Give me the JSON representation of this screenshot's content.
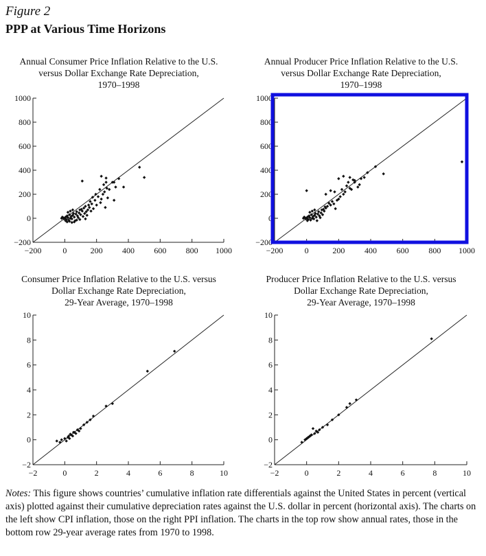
{
  "figure": {
    "label": "Figure 2",
    "title": "PPP at Various Time Horizons"
  },
  "panels": [
    {
      "title_lines": [
        "Annual Consumer Price Inflation Relative to the U.S.",
        "versus Dollar Exchange Rate Depreciation,",
        "1970–1998"
      ],
      "highlighted": false
    },
    {
      "title_lines": [
        "Annual Producer Price Inflation Relative to the U.S.",
        "versus Dollar Exchange Rate Depreciation,",
        "1970–1998"
      ],
      "highlighted": true,
      "highlight_color": "#1010e0"
    },
    {
      "title_lines": [
        "Consumer Price Inflation Relative to the U.S. versus",
        "Dollar Exchange Rate Depreciation,",
        "29-Year Average, 1970–1998"
      ],
      "highlighted": false
    },
    {
      "title_lines": [
        "Producer Price Inflation Relative to the U.S. versus",
        "Dollar Exchange Rate Depreciation,",
        "29-Year Average, 1970–1998"
      ],
      "highlighted": false
    }
  ],
  "notes": {
    "lead": "Notes:",
    "text": " This figure shows countries’ cumulative inflation rate differentials against the United States in percent (vertical axis) plotted against their cumulative depreciation rates against the U.S. dollar in percent (horizontal axis). The charts on the left show CPI inflation, those on the right PPI inflation. The charts in the top row show annual rates, those in the bottom row 29-year average rates from 1970 to 1998."
  },
  "chart_data": [
    {
      "type": "scatter",
      "title": "Annual Consumer Price Inflation Relative to the U.S. versus Dollar Exchange Rate Depreciation, 1970–1998",
      "xlim": [
        -200,
        1000
      ],
      "ylim": [
        -200,
        1000
      ],
      "xticks": [
        -200,
        0,
        200,
        400,
        600,
        800,
        1000
      ],
      "yticks": [
        -200,
        0,
        200,
        400,
        600,
        800,
        1000
      ],
      "reference_line": "45-degree",
      "points": [
        [
          -10,
          5
        ],
        [
          -5,
          -5
        ],
        [
          0,
          0
        ],
        [
          5,
          10
        ],
        [
          10,
          -10
        ],
        [
          15,
          20
        ],
        [
          20,
          5
        ],
        [
          25,
          -15
        ],
        [
          30,
          30
        ],
        [
          35,
          0
        ],
        [
          40,
          15
        ],
        [
          45,
          -5
        ],
        [
          50,
          25
        ],
        [
          55,
          40
        ],
        [
          60,
          10
        ],
        [
          65,
          -20
        ],
        [
          70,
          35
        ],
        [
          75,
          55
        ],
        [
          80,
          20
        ],
        [
          85,
          5
        ],
        [
          90,
          45
        ],
        [
          95,
          70
        ],
        [
          100,
          30
        ],
        [
          110,
          60
        ],
        [
          115,
          15
        ],
        [
          120,
          85
        ],
        [
          125,
          40
        ],
        [
          130,
          100
        ],
        [
          135,
          55
        ],
        [
          140,
          25
        ],
        [
          145,
          70
        ],
        [
          150,
          110
        ],
        [
          155,
          90
        ],
        [
          160,
          140
        ],
        [
          165,
          60
        ],
        [
          170,
          120
        ],
        [
          175,
          175
        ],
        [
          180,
          80
        ],
        [
          190,
          150
        ],
        [
          195,
          200
        ],
        [
          200,
          110
        ],
        [
          210,
          180
        ],
        [
          220,
          240
        ],
        [
          225,
          130
        ],
        [
          230,
          160
        ],
        [
          240,
          200
        ],
        [
          245,
          280
        ],
        [
          250,
          220
        ],
        [
          255,
          90
        ],
        [
          260,
          300
        ],
        [
          265,
          250
        ],
        [
          270,
          170
        ],
        [
          280,
          240
        ],
        [
          300,
          300
        ],
        [
          310,
          150
        ],
        [
          320,
          260
        ],
        [
          340,
          330
        ],
        [
          370,
          260
        ],
        [
          110,
          310
        ],
        [
          230,
          350
        ],
        [
          260,
          335
        ],
        [
          310,
          300
        ],
        [
          470,
          425
        ],
        [
          500,
          340
        ],
        [
          -15,
          10
        ],
        [
          -20,
          0
        ],
        [
          5,
          -20
        ],
        [
          15,
          -30
        ],
        [
          30,
          -25
        ],
        [
          45,
          -35
        ],
        [
          60,
          -30
        ],
        [
          20,
          50
        ],
        [
          35,
          60
        ],
        [
          50,
          70
        ],
        [
          75,
          -15
        ],
        [
          95,
          -10
        ],
        [
          105,
          75
        ],
        [
          130,
          -5
        ]
      ]
    },
    {
      "type": "scatter",
      "title": "Annual Producer Price Inflation Relative to the U.S. versus Dollar Exchange Rate Depreciation, 1970–1998",
      "xlim": [
        -200,
        1000
      ],
      "ylim": [
        -200,
        1000
      ],
      "xticks": [
        -200,
        0,
        200,
        400,
        600,
        800,
        1000
      ],
      "yticks": [
        -200,
        0,
        200,
        400,
        600,
        800,
        1000
      ],
      "reference_line": "45-degree",
      "points": [
        [
          -10,
          5
        ],
        [
          -5,
          -5
        ],
        [
          0,
          0
        ],
        [
          5,
          10
        ],
        [
          10,
          -10
        ],
        [
          15,
          20
        ],
        [
          20,
          5
        ],
        [
          25,
          -15
        ],
        [
          30,
          30
        ],
        [
          35,
          0
        ],
        [
          40,
          15
        ],
        [
          45,
          -5
        ],
        [
          50,
          25
        ],
        [
          55,
          40
        ],
        [
          60,
          10
        ],
        [
          65,
          -20
        ],
        [
          70,
          35
        ],
        [
          75,
          55
        ],
        [
          80,
          20
        ],
        [
          85,
          5
        ],
        [
          90,
          45
        ],
        [
          95,
          70
        ],
        [
          100,
          30
        ],
        [
          110,
          60
        ],
        [
          115,
          95
        ],
        [
          120,
          85
        ],
        [
          130,
          100
        ],
        [
          140,
          125
        ],
        [
          150,
          110
        ],
        [
          160,
          140
        ],
        [
          170,
          120
        ],
        [
          180,
          80
        ],
        [
          190,
          150
        ],
        [
          200,
          160
        ],
        [
          210,
          180
        ],
        [
          220,
          240
        ],
        [
          230,
          200
        ],
        [
          240,
          220
        ],
        [
          250,
          270
        ],
        [
          260,
          300
        ],
        [
          270,
          250
        ],
        [
          280,
          240
        ],
        [
          290,
          320
        ],
        [
          300,
          300
        ],
        [
          320,
          260
        ],
        [
          330,
          280
        ],
        [
          340,
          330
        ],
        [
          360,
          340
        ],
        [
          380,
          380
        ],
        [
          0,
          230
        ],
        [
          230,
          350
        ],
        [
          270,
          340
        ],
        [
          300,
          315
        ],
        [
          120,
          200
        ],
        [
          150,
          230
        ],
        [
          175,
          220
        ],
        [
          200,
          330
        ],
        [
          430,
          430
        ],
        [
          480,
          370
        ],
        [
          970,
          470
        ],
        [
          -15,
          10
        ],
        [
          -20,
          0
        ],
        [
          5,
          -20
        ],
        [
          20,
          50
        ],
        [
          35,
          60
        ],
        [
          50,
          70
        ],
        [
          105,
          75
        ]
      ]
    },
    {
      "type": "scatter",
      "title": "Consumer Price Inflation Relative to the U.S. versus Dollar Exchange Rate Depreciation, 29-Year Average, 1970–1998",
      "xlim": [
        -2,
        10
      ],
      "ylim": [
        -2,
        10
      ],
      "xticks": [
        -2,
        0,
        2,
        4,
        6,
        8,
        10
      ],
      "yticks": [
        -2,
        0,
        2,
        4,
        6,
        8,
        10
      ],
      "reference_line": "45-degree",
      "points": [
        [
          -0.5,
          -0.1
        ],
        [
          -0.3,
          -0.2
        ],
        [
          -0.2,
          0.0
        ],
        [
          0.0,
          0.1
        ],
        [
          0.1,
          -0.1
        ],
        [
          0.2,
          0.2
        ],
        [
          0.3,
          0.1
        ],
        [
          0.4,
          0.4
        ],
        [
          0.5,
          0.3
        ],
        [
          0.6,
          0.6
        ],
        [
          0.7,
          0.5
        ],
        [
          0.8,
          0.8
        ],
        [
          0.9,
          0.7
        ],
        [
          1.0,
          0.9
        ],
        [
          1.2,
          1.2
        ],
        [
          1.4,
          1.4
        ],
        [
          1.6,
          1.6
        ],
        [
          1.8,
          1.9
        ],
        [
          2.6,
          2.7
        ],
        [
          3.0,
          2.9
        ],
        [
          5.2,
          5.5
        ],
        [
          6.9,
          7.1
        ],
        [
          0.35,
          0.45
        ],
        [
          0.55,
          0.6
        ],
        [
          0.25,
          0.3
        ]
      ]
    },
    {
      "type": "scatter",
      "title": "Producer Price Inflation Relative to the U.S. versus Dollar Exchange Rate Depreciation, 29-Year Average, 1970–1998",
      "xlim": [
        -2,
        10
      ],
      "ylim": [
        -2,
        10
      ],
      "xticks": [
        -2,
        0,
        2,
        4,
        6,
        8,
        10
      ],
      "yticks": [
        -2,
        0,
        2,
        4,
        6,
        8,
        10
      ],
      "reference_line": "45-degree",
      "points": [
        [
          -0.3,
          -0.2
        ],
        [
          -0.1,
          0.0
        ],
        [
          0.0,
          0.1
        ],
        [
          0.1,
          0.2
        ],
        [
          0.2,
          0.3
        ],
        [
          0.3,
          0.4
        ],
        [
          0.4,
          0.9
        ],
        [
          0.5,
          0.5
        ],
        [
          0.6,
          0.7
        ],
        [
          0.7,
          0.6
        ],
        [
          0.8,
          0.8
        ],
        [
          1.0,
          1.0
        ],
        [
          1.3,
          1.2
        ],
        [
          1.6,
          1.6
        ],
        [
          2.0,
          2.0
        ],
        [
          2.5,
          2.6
        ],
        [
          2.7,
          2.9
        ],
        [
          3.1,
          3.2
        ],
        [
          7.8,
          8.1
        ]
      ]
    }
  ]
}
